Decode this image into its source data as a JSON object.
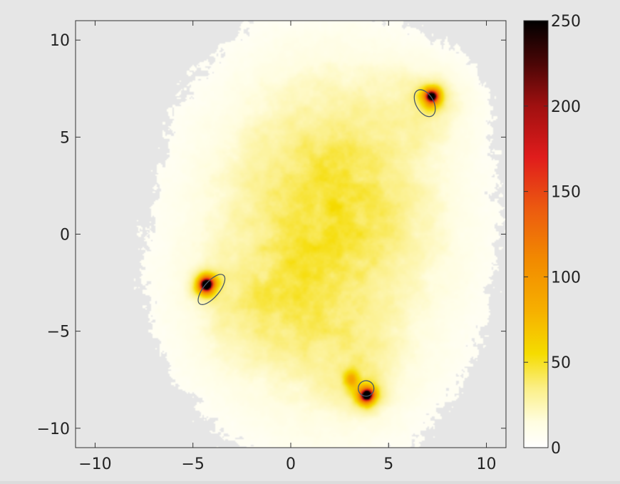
{
  "chart_data": {
    "type": "heatmap",
    "title": "",
    "xlabel": "",
    "ylabel": "",
    "xlim": [
      -11,
      11
    ],
    "ylim": [
      -11,
      11
    ],
    "x_ticks": [
      -10,
      -5,
      0,
      5,
      10
    ],
    "y_ticks": [
      -10,
      -5,
      0,
      5,
      10
    ],
    "x_tick_labels": [
      "−10",
      "−5",
      "0",
      "5",
      "10"
    ],
    "y_tick_labels": [
      "−10",
      "−5",
      "0",
      "5",
      "10"
    ],
    "background_color": "#e6e6e6",
    "colormap": {
      "name": "hot (inverted)",
      "range": [
        0,
        250
      ],
      "ticks": [
        0,
        50,
        100,
        150,
        200,
        250
      ],
      "stops": [
        {
          "value": 0,
          "color": "#ffffff"
        },
        {
          "value": 15,
          "color": "#fffde0"
        },
        {
          "value": 35,
          "color": "#fbef86"
        },
        {
          "value": 55,
          "color": "#f5dc00"
        },
        {
          "value": 80,
          "color": "#f6b000"
        },
        {
          "value": 110,
          "color": "#f28a00"
        },
        {
          "value": 140,
          "color": "#ec5a10"
        },
        {
          "value": 170,
          "color": "#e01c1c"
        },
        {
          "value": 200,
          "color": "#a01010"
        },
        {
          "value": 225,
          "color": "#4a0606"
        },
        {
          "value": 250,
          "color": "#000000"
        }
      ]
    },
    "density_field": [
      {
        "x": 1.5,
        "y": -0.5,
        "sx": 4.5,
        "sy": 6.0,
        "peak": 35
      },
      {
        "x": 2.8,
        "y": 3.0,
        "sx": 3.2,
        "sy": 3.8,
        "peak": 18
      },
      {
        "x": -1.5,
        "y": -4.0,
        "sx": 2.4,
        "sy": 2.0,
        "peak": 16
      },
      {
        "x": 3.2,
        "y": -7.0,
        "sx": 1.8,
        "sy": 1.8,
        "peak": 15
      },
      {
        "x": 7.0,
        "y": 6.8,
        "sx": 1.6,
        "sy": 1.4,
        "peak": 15
      },
      {
        "x": 3.1,
        "y": -7.5,
        "sx": 0.25,
        "sy": 0.35,
        "peak": 55
      }
    ],
    "hotspots": [
      {
        "x": -4.3,
        "y": -2.6,
        "peak": 250
      },
      {
        "x": 3.9,
        "y": -8.3,
        "peak": 250
      },
      {
        "x": 7.2,
        "y": 7.1,
        "peak": 230
      }
    ],
    "contours": [
      {
        "center": [
          -4.05,
          -2.85
        ],
        "rx": 0.95,
        "ry": 0.4,
        "angle_deg": -50
      },
      {
        "center": [
          3.85,
          -7.95
        ],
        "rx": 0.4,
        "ry": 0.4,
        "angle_deg": 0
      },
      {
        "center": [
          6.85,
          6.75
        ],
        "rx": 0.75,
        "ry": 0.45,
        "angle_deg": 60
      }
    ],
    "contour_color": "#4a5a6a",
    "grid": false,
    "legend": "none"
  }
}
